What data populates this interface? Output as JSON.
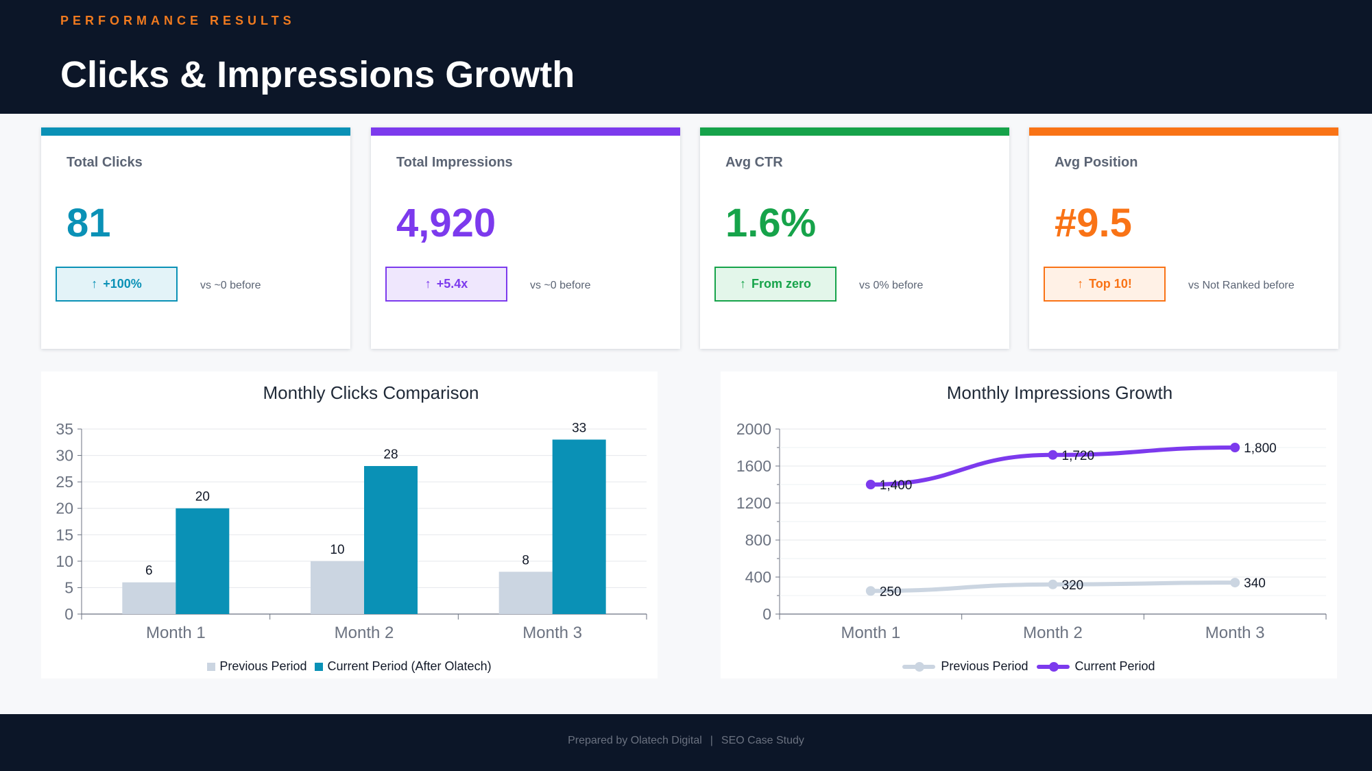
{
  "header": {
    "eyebrow": "PERFORMANCE RESULTS",
    "title": "Clicks & Impressions Growth"
  },
  "metrics": [
    {
      "label": "Total Clicks",
      "value": "81",
      "badge_arrow": "↑",
      "badge": "+100%",
      "note": "vs ~0 before",
      "color": "#0a91b6",
      "badge_bg": "#e3f3f8"
    },
    {
      "label": "Total Impressions",
      "value": "4,920",
      "badge_arrow": "↑",
      "badge": "+5.4x",
      "note": "vs ~0 before",
      "color": "#7c3aed",
      "badge_bg": "#efe7fd"
    },
    {
      "label": "Avg CTR",
      "value": "1.6%",
      "badge_arrow": "↑",
      "badge": "From zero",
      "note": "vs 0% before",
      "color": "#16a34a",
      "badge_bg": "#e3f6ea"
    },
    {
      "label": "Avg Position",
      "value": "#9.5",
      "badge_arrow": "↑",
      "badge": "Top 10!",
      "note": "vs Not Ranked before",
      "color": "#f97316",
      "badge_bg": "#fff1e6"
    }
  ],
  "chart_data": [
    {
      "type": "bar",
      "title": "Monthly Clicks Comparison",
      "categories": [
        "Month 1",
        "Month 2",
        "Month 3"
      ],
      "ylim": [
        0,
        35
      ],
      "yticks": [
        0,
        5,
        10,
        15,
        20,
        25,
        30,
        35
      ],
      "grid": true,
      "legend": "bottom",
      "series": [
        {
          "name": "Previous Period",
          "values": [
            6,
            10,
            8
          ],
          "labels": [
            "6",
            "10",
            "8"
          ],
          "color": "#cbd5e1"
        },
        {
          "name": "Current Period (After Olatech)",
          "values": [
            20,
            28,
            33
          ],
          "labels": [
            "20",
            "28",
            "33"
          ],
          "color": "#0a91b6"
        }
      ]
    },
    {
      "type": "line",
      "title": "Monthly Impressions Growth",
      "categories": [
        "Month 1",
        "Month 2",
        "Month 3"
      ],
      "ylim": [
        0,
        2000
      ],
      "yticks": [
        0,
        400,
        800,
        1200,
        1600,
        2000
      ],
      "grid": true,
      "legend": "bottom",
      "series": [
        {
          "name": "Previous Period",
          "values": [
            250,
            320,
            340
          ],
          "labels": [
            "250",
            "320",
            "340"
          ],
          "color": "#cbd5e1"
        },
        {
          "name": "Current Period",
          "values": [
            1400,
            1720,
            1800
          ],
          "labels": [
            "1,400",
            "1,720",
            "1,800"
          ],
          "color": "#7c3aed"
        }
      ]
    }
  ],
  "footer": {
    "left": "Prepared by Olatech Digital",
    "separator": "|",
    "right": "SEO Case Study"
  }
}
